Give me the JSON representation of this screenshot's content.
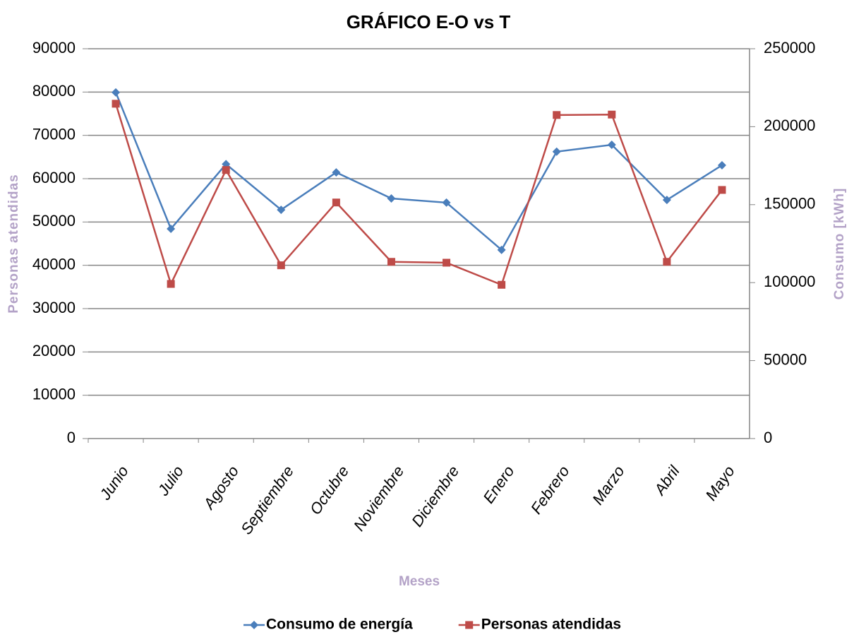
{
  "chart_data": {
    "type": "line",
    "title": "GRÁFICO E-O vs T",
    "x_label": "Meses",
    "y_label": "Personas atendidas",
    "y2_label": "Consumo [kWh]",
    "categories": [
      "Junio",
      "Julio",
      "Agosto",
      "Septiembre",
      "Octubre",
      "Noviembre",
      "Diciembre",
      "Enero",
      "Febrero",
      "Marzo",
      "Abril",
      "Mayo"
    ],
    "series": [
      {
        "name": "Consumo de energía",
        "color": "#4a7ebb",
        "marker": "diamond",
        "axis": "y2",
        "values": [
          222000,
          134500,
          176000,
          146700,
          170700,
          154000,
          151300,
          121000,
          184000,
          188400,
          153000,
          175300
        ]
      },
      {
        "name": "Personas atendidas",
        "color": "#be4b48",
        "marker": "square",
        "axis": "y",
        "values": [
          77300,
          35700,
          62000,
          40000,
          54500,
          40800,
          40600,
          35500,
          74700,
          74800,
          40800,
          57400
        ]
      }
    ],
    "ylim": [
      0,
      90000
    ],
    "yticks": [
      0,
      10000,
      20000,
      30000,
      40000,
      50000,
      60000,
      70000,
      80000,
      90000
    ],
    "y2lim": [
      0,
      250000
    ],
    "y2ticks": [
      0,
      50000,
      100000,
      150000,
      200000,
      250000
    ],
    "grid": true,
    "legend": "bottom"
  }
}
